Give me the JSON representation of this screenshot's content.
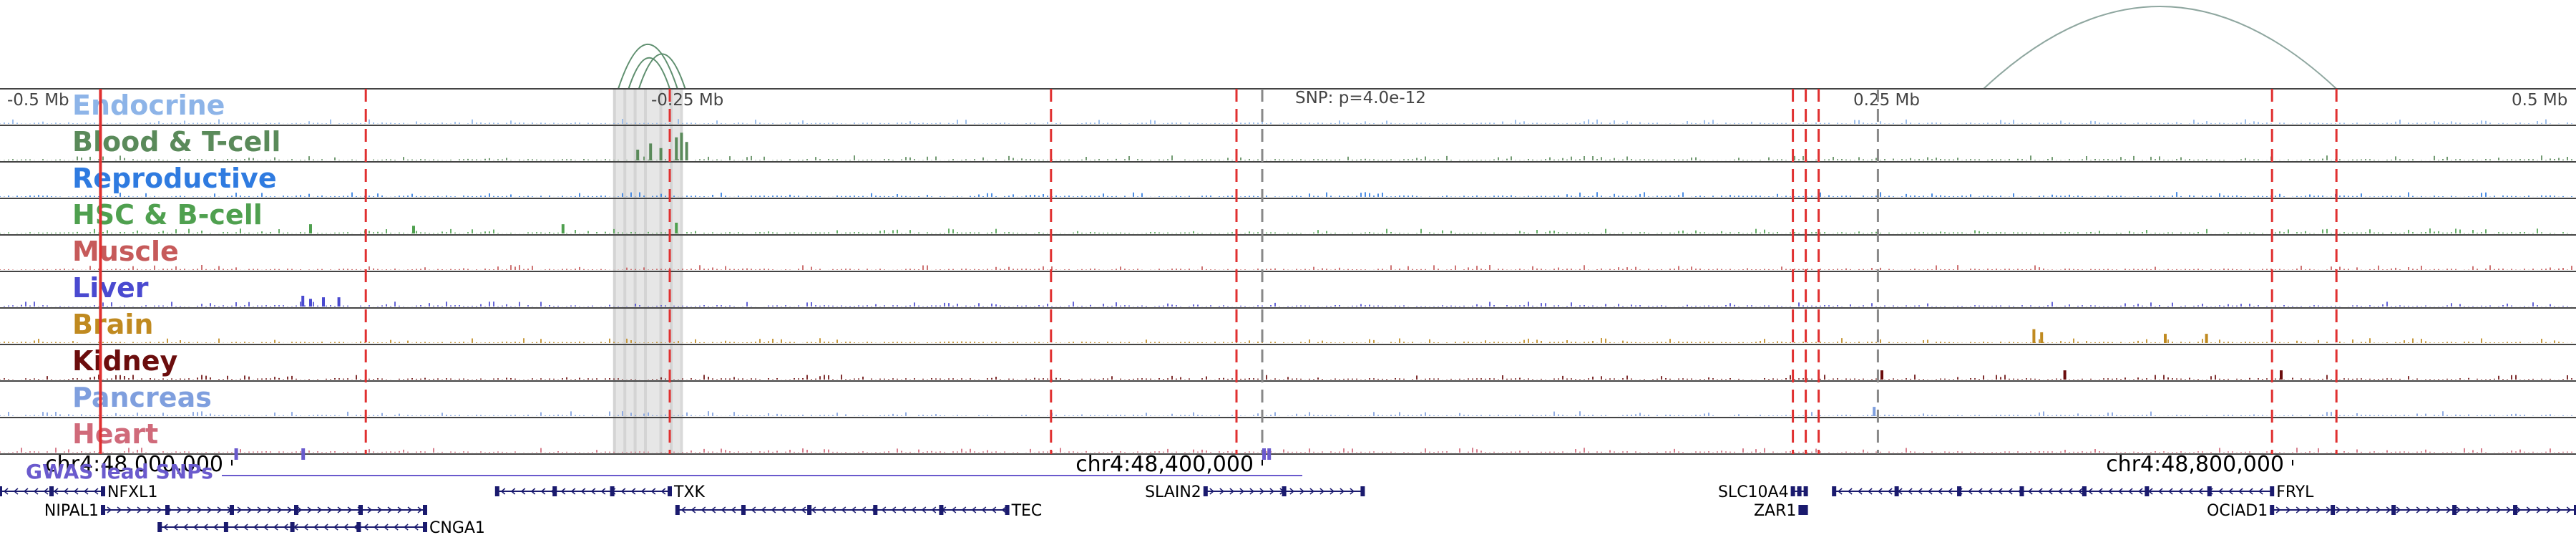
{
  "chart_data": {
    "type": "area",
    "title": "",
    "region_scale": {
      "left_label": "-0.5 Mb",
      "mid_left_label": "-0.25 Mb",
      "center_label": "SNP: p=4.0e-12",
      "mid_right_label": "0.25 Mb",
      "right_label": "0.5 Mb"
    },
    "x_axis": {
      "ticks": [
        {
          "label": "chr4:48,000,000",
          "pos": 48000000
        },
        {
          "label": "chr4:48,400,000",
          "pos": 48400000
        },
        {
          "label": "chr4:48,800,000",
          "pos": 48800000
        }
      ],
      "xlim": [
        47910000,
        48910000
      ]
    },
    "tracks": [
      {
        "name": "Endocrine",
        "color": "#8db4e8"
      },
      {
        "name": "Blood & T-cell",
        "color": "#5a8a5a"
      },
      {
        "name": "Reproductive",
        "color": "#2f7be0"
      },
      {
        "name": "HSC & B-cell",
        "color": "#4fa04f"
      },
      {
        "name": "Muscle",
        "color": "#c65a5a"
      },
      {
        "name": "Liver",
        "color": "#4a4ad0"
      },
      {
        "name": "Brain",
        "color": "#c08a20"
      },
      {
        "name": "Kidney",
        "color": "#6b0d0d"
      },
      {
        "name": "Pancreas",
        "color": "#7f9fde"
      },
      {
        "name": "Heart",
        "color": "#d06a7a"
      }
    ],
    "peaks": [
      {
        "track": "Blood & T-cell",
        "pos": [
          48157000,
          48162000,
          48166000,
          48172000,
          48174000,
          48176000
        ],
        "height": [
          0.35,
          0.55,
          0.4,
          0.75,
          0.9,
          0.6
        ]
      },
      {
        "track": "HSC & B-cell",
        "pos": [
          48030000,
          48070000,
          48128000,
          48172000
        ],
        "height": [
          0.3,
          0.25,
          0.3,
          0.35
        ]
      },
      {
        "track": "Liver",
        "pos": [
          48027000,
          48030000,
          48035000,
          48041000
        ],
        "height": [
          0.35,
          0.25,
          0.3,
          0.3
        ]
      },
      {
        "track": "Brain",
        "pos": [
          48699000,
          48702000,
          48750000,
          48766000
        ],
        "height": [
          0.45,
          0.35,
          0.3,
          0.3
        ]
      },
      {
        "track": "Kidney",
        "pos": [
          48640000,
          48711000,
          48795000
        ],
        "height": [
          0.3,
          0.3,
          0.3
        ]
      },
      {
        "track": "Pancreas",
        "pos": [
          48637000
        ],
        "height": [
          0.3
        ]
      }
    ],
    "red_lines": [
      47949000,
      48052000,
      48170000,
      48318000,
      48390000,
      48606000,
      48611000,
      48616000,
      48792000,
      48817000
    ],
    "gray_lines": [
      48400000,
      48639000
    ],
    "highlight_band": [
      48148000,
      48174000
    ],
    "loops": [
      {
        "from": 48150000,
        "to": 48173000
      },
      {
        "from": 48154000,
        "to": 48170000
      },
      {
        "from": 48158000,
        "to": 48176000
      },
      {
        "from": 48680000,
        "to": 48817000
      }
    ],
    "gwas_label": "GWAS lead SNPs",
    "gwas_snps": [
      48027000,
      48001000,
      48402000,
      48400000
    ],
    "genes": [
      {
        "name": "NFXL1",
        "start": 47910000,
        "end": 47950000,
        "strand": "-",
        "row": 0,
        "label_side": "right"
      },
      {
        "name": "NIPAL1",
        "start": 47950000,
        "end": 48075000,
        "strand": "+",
        "row": 1,
        "label_side": "left"
      },
      {
        "name": "CNGA1",
        "start": 47972000,
        "end": 48075000,
        "strand": "-",
        "row": 2,
        "label_side": "right"
      },
      {
        "name": "TXK",
        "start": 48103000,
        "end": 48170000,
        "strand": "-",
        "row": 0,
        "label_side": "right"
      },
      {
        "name": "TEC",
        "start": 48173000,
        "end": 48301000,
        "strand": "-",
        "row": 1,
        "label_side": "right"
      },
      {
        "name": "SLAIN2",
        "start": 48378000,
        "end": 48439000,
        "strand": "+",
        "row": 0,
        "label_side": "left"
      },
      {
        "name": "SLC10A4",
        "start": 48606000,
        "end": 48611000,
        "strand": "+",
        "row": 0,
        "label_side": "left"
      },
      {
        "name": "ZAR1",
        "start": 48609000,
        "end": 48611000,
        "strand": "+",
        "row": 1,
        "label_side": "left"
      },
      {
        "name": "FRYL",
        "start": 48622000,
        "end": 48792000,
        "strand": "-",
        "row": 0,
        "label_side": "right"
      },
      {
        "name": "OCIAD1",
        "start": 48792000,
        "end": 48910000,
        "strand": "+",
        "row": 1,
        "label_side": "left"
      }
    ]
  }
}
